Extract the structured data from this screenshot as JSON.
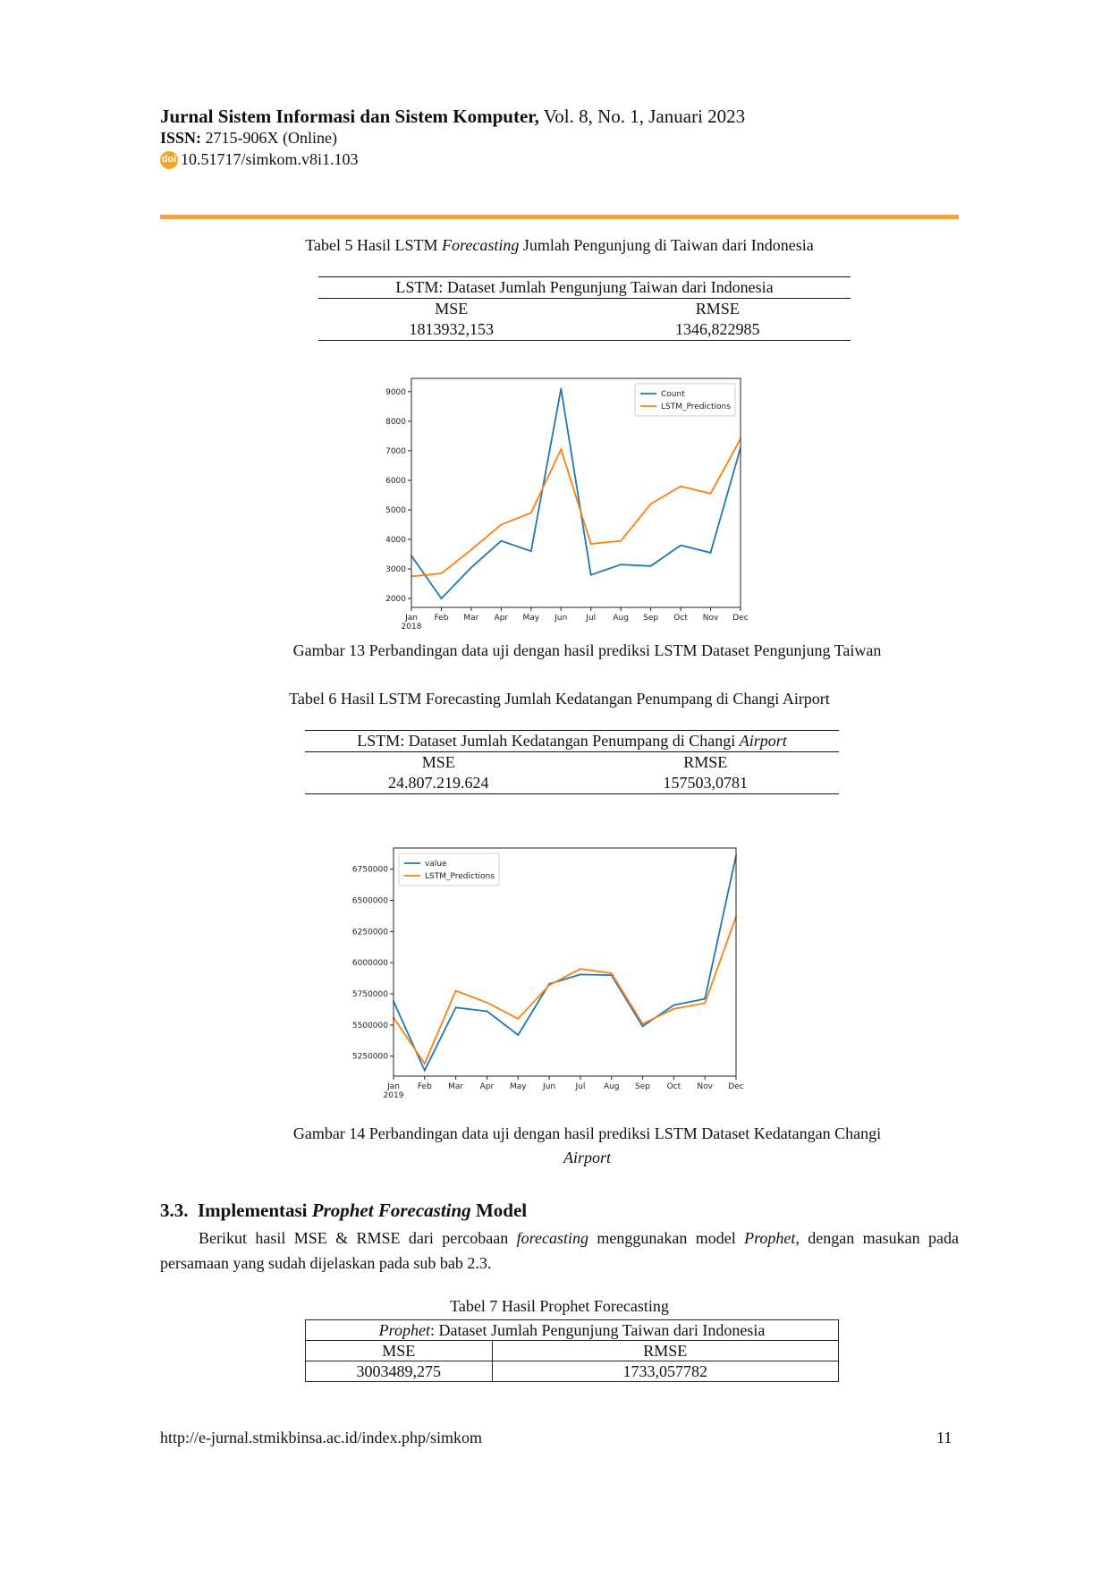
{
  "header": {
    "journal": "Jurnal Sistem Informasi dan Sistem Komputer,",
    "issue": "Vol. 8, No. 1, Januari 2023",
    "issn_label": "ISSN:",
    "issn_value": "2715-906X (Online)",
    "doi_icon": "doi",
    "doi": "10.51717/simkom.v8i1.103"
  },
  "table5": {
    "caption_prefix": "Tabel  5 Hasil LSTM ",
    "caption_italic": "Forecasting",
    "caption_suffix": " Jumlah Pengunjung di Taiwan dari Indonesia",
    "title": "LSTM: Dataset Jumlah Pengunjung Taiwan dari Indonesia",
    "col_mse": "MSE",
    "col_rmse": "RMSE",
    "mse": "1813932,153",
    "rmse": "1346,822985"
  },
  "figure13": {
    "caption": "Gambar 13 Perbandingan data uji dengan hasil prediksi LSTM Dataset Pengunjung Taiwan"
  },
  "table6": {
    "caption": "Tabel  6 Hasil LSTM Forecasting Jumlah Kedatangan Penumpang di Changi Airport",
    "title_prefix": "LSTM: Dataset Jumlah Kedatangan Penumpang di Changi ",
    "title_italic": "Airport",
    "col_mse": "MSE",
    "col_rmse": "RMSE",
    "mse": "24.807.219.624",
    "rmse": "157503,0781"
  },
  "figure14": {
    "caption_line1": "Gambar 14 Perbandingan data uji dengan hasil prediksi LSTM Dataset Kedatangan Changi",
    "caption_line2": "Airport"
  },
  "section": {
    "number": "3.3.",
    "title_prefix": "Implementasi ",
    "title_italic": "Prophet Forecasting",
    "title_suffix": " Model",
    "para_p1": "Berikut hasil MSE & RMSE dari percobaan ",
    "para_i1": "forecasting",
    "para_p2": " menggunakan model ",
    "para_i2": "Prophet",
    "para_p3": ", dengan masukan pada persamaan yang sudah dijelaskan pada sub bab 2.3."
  },
  "table7": {
    "caption": "Tabel  7 Hasil Prophet Forecasting",
    "title_italic": "Prophet",
    "title_rest": ": Dataset Jumlah Pengunjung Taiwan dari Indonesia",
    "col_mse": "MSE",
    "col_rmse": "RMSE",
    "mse": "3003489,275",
    "rmse": "1733,057782"
  },
  "footer": {
    "url": "http://e-jurnal.stmikbinsa.ac.id/index.php/simkom",
    "page": "11"
  },
  "chart_data": [
    {
      "type": "line",
      "categories": [
        "Jan",
        "Feb",
        "Mar",
        "Apr",
        "May",
        "Jun",
        "Jul",
        "Aug",
        "Sep",
        "Oct",
        "Nov",
        "Dec"
      ],
      "year_label": "2018",
      "series": [
        {
          "name": "Count",
          "color": "#1f77b4",
          "values": [
            3450,
            2000,
            3050,
            3950,
            3600,
            9100,
            2800,
            3150,
            3100,
            3800,
            3550,
            7100
          ]
        },
        {
          "name": "LSTM_Predictions",
          "color": "#ff7f0e",
          "values": [
            2750,
            2850,
            3650,
            4500,
            4900,
            7050,
            3850,
            3950,
            5200,
            5800,
            5550,
            7400
          ]
        }
      ],
      "yticks": [
        "2000",
        "3000",
        "4000",
        "5000",
        "6000",
        "7000",
        "8000",
        "9000"
      ],
      "ylim": [
        1700,
        9450
      ],
      "legend": "top-right",
      "grid": false
    },
    {
      "type": "line",
      "categories": [
        "Jan",
        "Feb",
        "Mar",
        "Apr",
        "May",
        "Jun",
        "Jul",
        "Aug",
        "Sep",
        "Oct",
        "Nov",
        "Dec"
      ],
      "year_label": "2019",
      "series": [
        {
          "name": "value",
          "color": "#1f77b4",
          "values": [
            5690000,
            5135000,
            5640000,
            5610000,
            5420000,
            5830000,
            5905000,
            5900000,
            5490000,
            5660000,
            5710000,
            6860000
          ]
        },
        {
          "name": "LSTM_Predictions",
          "color": "#ff7f0e",
          "values": [
            5560000,
            5190000,
            5775000,
            5680000,
            5550000,
            5820000,
            5950000,
            5915000,
            5510000,
            5630000,
            5675000,
            6370000
          ]
        }
      ],
      "yticks": [
        "5250000",
        "5500000",
        "5750000",
        "6000000",
        "6250000",
        "6500000",
        "6750000"
      ],
      "ylim": [
        5090000,
        6920000
      ],
      "legend": "top-left",
      "grid": false
    }
  ]
}
